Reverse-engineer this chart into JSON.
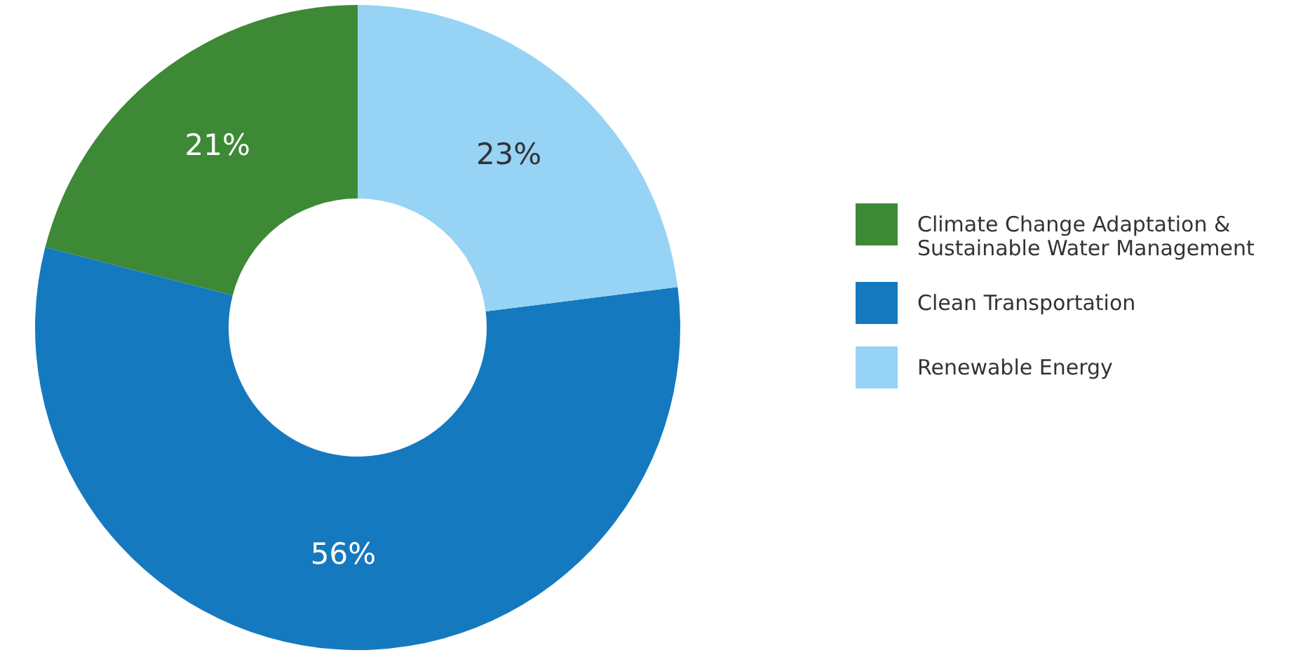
{
  "chart_data": {
    "type": "donut",
    "categories": [
      "Climate Change Adaptation & Sustainable Water Management",
      "Clean Transportation",
      "Renewable Energy"
    ],
    "values": [
      21,
      56,
      23
    ],
    "colors": [
      "#3d8936",
      "#1579bf",
      "#96d3f4"
    ],
    "value_labels": [
      "21%",
      "56%",
      "23%"
    ],
    "legend": "right"
  }
}
